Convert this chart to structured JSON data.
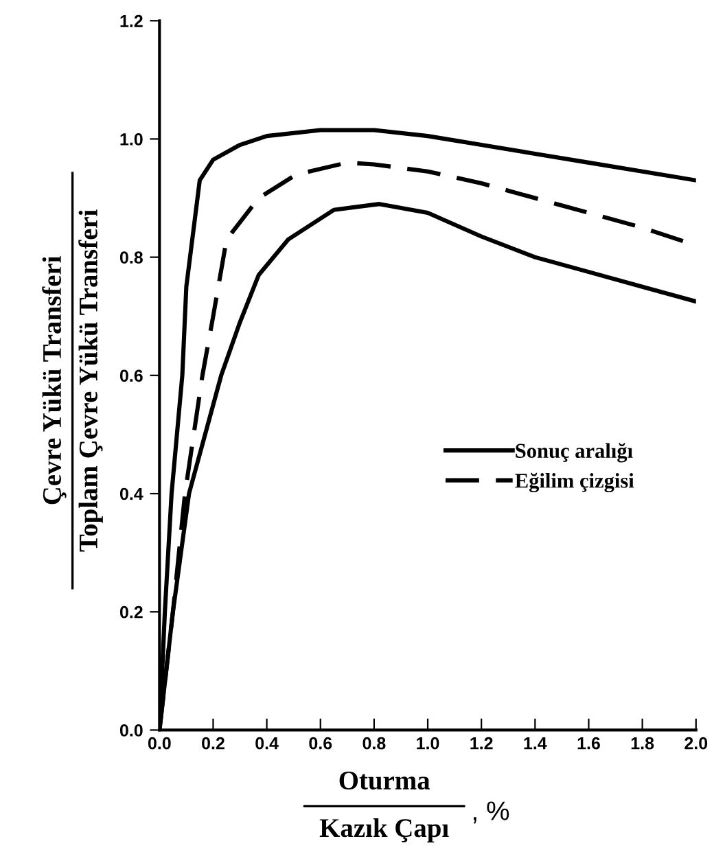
{
  "chart_data": {
    "type": "line",
    "xlabel": "Oturma\nKazık Çapı",
    "ylabel": "Çevre Yükü Transferi\nToplam Çevre Yükü Transferi",
    "annotations": [
      ", %"
    ],
    "series": [
      {
        "name": "Sonuç aralığı",
        "color": "#000000",
        "line_style": "solid",
        "x": [
          0,
          0.02,
          0.045,
          0.085,
          0.1,
          0.15,
          0.2,
          0.3,
          0.4,
          0.6,
          0.8,
          1.0,
          1.2,
          1.4,
          1.6,
          1.8,
          2.0
        ],
        "values": [
          0,
          0.2,
          0.4,
          0.6,
          0.75,
          0.93,
          0.965,
          0.99,
          1.005,
          1.015,
          1.015,
          1.005,
          0.99,
          0.975,
          0.96,
          0.945,
          0.93
        ]
      },
      {
        "name": "Eğilim çizgisi",
        "color": "#000000",
        "line_style": "dashed",
        "x": [
          0,
          0.05,
          0.095,
          0.16,
          0.2,
          0.25,
          0.37,
          0.51,
          0.7,
          0.8,
          1.0,
          1.2,
          1.4,
          1.6,
          1.8,
          2.0
        ],
        "values": [
          0,
          0.2,
          0.4,
          0.6,
          0.7,
          0.83,
          0.9,
          0.94,
          0.96,
          0.957,
          0.945,
          0.925,
          0.9,
          0.875,
          0.85,
          0.82
        ]
      },
      {
        "color": "#000000",
        "line_style": "solid",
        "x": [
          0,
          0.05,
          0.11,
          0.23,
          0.3,
          0.37,
          0.48,
          0.65,
          0.82,
          1.0,
          1.2,
          1.4,
          1.6,
          1.8,
          2.0
        ],
        "values": [
          0,
          0.2,
          0.4,
          0.6,
          0.69,
          0.77,
          0.83,
          0.88,
          0.89,
          0.875,
          0.835,
          0.8,
          0.775,
          0.75,
          0.725
        ]
      }
    ],
    "xlim": [
      0,
      2.0
    ],
    "ylim": [
      0,
      1.2
    ],
    "xticks": [
      {
        "value": 0,
        "label": "0.0"
      },
      0.2,
      0.4,
      0.6,
      0.8,
      {
        "value": 1.0,
        "label": "1.0"
      },
      1.2,
      1.4,
      1.6,
      1.8,
      {
        "value": 2.0,
        "label": "2.0"
      }
    ],
    "yticks": [
      {
        "value": 0,
        "label": "0.0"
      },
      0.2,
      0.4,
      0.6,
      0.8,
      {
        "value": 1.0,
        "label": "1.0"
      },
      1.2
    ],
    "grid": false,
    "legend": "right",
    "marker": "none"
  }
}
